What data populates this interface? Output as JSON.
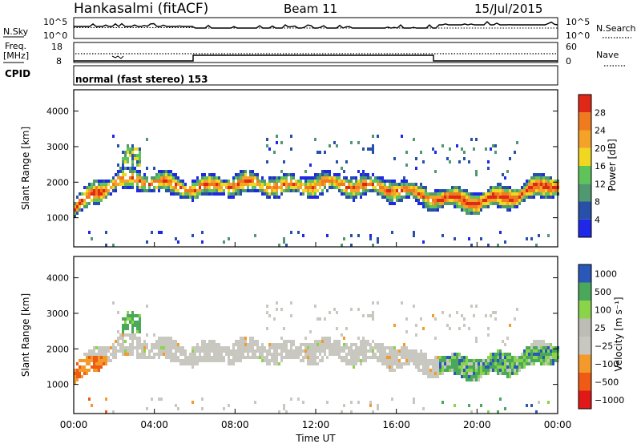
{
  "header": {
    "station": "Hankasalmi (fitACF)",
    "beam": "Beam 11",
    "date": "15/Jul/2015"
  },
  "top_panels": {
    "nsky_label": "N.Sky",
    "nsky_ticks": [
      "10^5",
      "10^0"
    ],
    "nsearch_label": "N.Search",
    "nsearch_ticks": [
      "10^5",
      "10^0"
    ],
    "freq_label_1": "Freq.",
    "freq_label_2": "[MHz]",
    "freq_ticks": [
      "18",
      "8"
    ],
    "nave_label": "Nave",
    "nave_ticks": [
      "60",
      "0"
    ],
    "cpid_label": "CPID",
    "cpid_value": "normal (fast stereo) 153"
  },
  "colors": {
    "power_scale": [
      "#1f28e8",
      "#2750a8",
      "#4f9870",
      "#5ec45a",
      "#f0d820",
      "#f4a228",
      "#f07a1e",
      "#e02818"
    ],
    "velocity_scale": [
      "#e01818",
      "#ef5a15",
      "#f39a2a",
      "#c8c8c0",
      "#bdbdb5",
      "#8ad44a",
      "#4aa85a",
      "#2a58b8"
    ]
  },
  "chart_data": [
    {
      "type": "heatmap",
      "name": "power",
      "ylabel": "Slant Range [km]",
      "xlabel": "Time UT",
      "x_ticks": [
        "00:00",
        "04:00",
        "08:00",
        "12:00",
        "16:00",
        "20:00",
        "00:00"
      ],
      "y_ticks": [
        1000,
        2000,
        3000,
        4000
      ],
      "ylim": [
        180,
        4600
      ],
      "xlim_hours": [
        0,
        24
      ],
      "colorbar_label": "Power [dB]",
      "colorbar_ticks": [
        "4",
        "8",
        "12",
        "16",
        "20",
        "24",
        "28"
      ],
      "colorbar_range": [
        0,
        32
      ],
      "band_center_km": [
        [
          0,
          1250
        ],
        [
          1,
          1700
        ],
        [
          2,
          2000
        ],
        [
          3,
          2080
        ],
        [
          4,
          2000
        ],
        [
          5,
          1900
        ],
        [
          6,
          1800
        ],
        [
          7,
          1900
        ],
        [
          8,
          1950
        ],
        [
          9,
          1950
        ],
        [
          10,
          1900
        ],
        [
          11,
          1880
        ],
        [
          12,
          1950
        ],
        [
          13,
          1950
        ],
        [
          14,
          1900
        ],
        [
          15,
          1850
        ],
        [
          16,
          1800
        ],
        [
          17,
          1650
        ],
        [
          18,
          1550
        ],
        [
          19,
          1500
        ],
        [
          20,
          1450
        ],
        [
          21,
          1550
        ],
        [
          22,
          1650
        ],
        [
          23,
          1850
        ],
        [
          24,
          1950
        ]
      ],
      "peak_power_db": 28
    },
    {
      "type": "heatmap",
      "name": "velocity",
      "ylabel": "Slant Range [km]",
      "xlabel": "Time UT",
      "x_ticks": [
        "00:00",
        "04:00",
        "08:00",
        "12:00",
        "16:00",
        "20:00",
        "00:00"
      ],
      "y_ticks": [
        1000,
        2000,
        3000,
        4000
      ],
      "ylim": [
        180,
        4600
      ],
      "xlim_hours": [
        0,
        24
      ],
      "colorbar_label": "Velocity [m s⁻¹]",
      "colorbar_ticks": [
        "1000",
        "500",
        "100",
        "25",
        "−25",
        "−100",
        "−500",
        "−1000"
      ]
    }
  ]
}
